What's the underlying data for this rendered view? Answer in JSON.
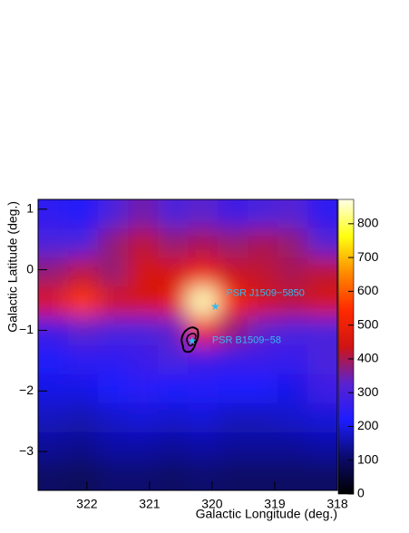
{
  "chart_data": {
    "type": "heatmap",
    "xlabel": "Galactic Longitude (deg.)",
    "ylabel": "Galactic Latitude (deg.)",
    "xlim": [
      322.78,
      318
    ],
    "ylim": [
      -3.64,
      1.16
    ],
    "xticks": [
      322,
      321,
      320,
      319,
      318
    ],
    "yticks": [
      1,
      0,
      {
        "value": -1,
        "label": "−1"
      },
      {
        "value": -2,
        "label": "−2"
      },
      {
        "value": -3,
        "label": "−3"
      }
    ],
    "zlim": [
      0,
      872
    ],
    "zticks": [
      0,
      100,
      200,
      300,
      400,
      500,
      600,
      700,
      800
    ],
    "colorscale": [
      "#000000",
      "#0b0b6e",
      "#1c1cff",
      "#5a22d0",
      "#d01414",
      "#ff2a00",
      "#ff8a00",
      "#ffff10",
      "#ffffe8"
    ],
    "z": [
      [
        250,
        230,
        300,
        350,
        300,
        330,
        280,
        300,
        320,
        250
      ],
      [
        300,
        300,
        380,
        420,
        380,
        400,
        380,
        400,
        380,
        320
      ],
      [
        380,
        420,
        380,
        450,
        450,
        500,
        430,
        420,
        400,
        420
      ],
      [
        460,
        560,
        440,
        450,
        480,
        850,
        520,
        450,
        420,
        450
      ],
      [
        280,
        330,
        300,
        300,
        330,
        520,
        380,
        330,
        300,
        300
      ],
      [
        230,
        250,
        250,
        270,
        300,
        280,
        270,
        270,
        260,
        300
      ],
      [
        200,
        200,
        220,
        240,
        220,
        230,
        220,
        220,
        200,
        280
      ],
      [
        170,
        160,
        180,
        190,
        180,
        190,
        170,
        170,
        180,
        190
      ],
      [
        140,
        130,
        150,
        150,
        140,
        150,
        140,
        140,
        140,
        150
      ],
      [
        100,
        90,
        110,
        110,
        100,
        110,
        100,
        100,
        100,
        100
      ]
    ],
    "sources": [
      {
        "name": "PSR J1509−5850",
        "x": 319.95,
        "y": -0.6,
        "color": "#33bbee"
      },
      {
        "name": "PSR B1509−58",
        "x": 320.32,
        "y": -1.17,
        "color": "#33bbee"
      }
    ]
  }
}
